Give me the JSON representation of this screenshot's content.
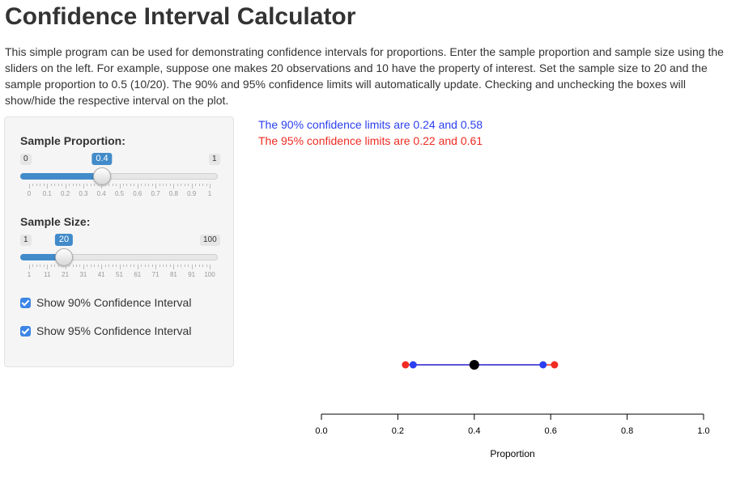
{
  "title": "Confidence Interval Calculator",
  "intro": "This simple program can be used for demonstrating confidence intervals for proportions. Enter the sample proportion and sample size using the sliders on the left. For example, suppose one makes 20 observations and 10 have the property of interest. Set the sample size to 20 and the sample proportion to 0.5 (10/20). The 90% and 95% confidence limits will automatically update. Checking and unchecking the boxes will show/hide the respective interval on the plot.",
  "prop": {
    "label": "Sample Proportion:",
    "min": "0",
    "max": "1",
    "value": "0.4",
    "ticks": [
      "0",
      "0.1",
      "0.2",
      "0.3",
      "0.4",
      "0.5",
      "0.6",
      "0.7",
      "0.8",
      "0.9",
      "1"
    ]
  },
  "size": {
    "label": "Sample Size:",
    "min": "1",
    "max": "100",
    "value": "20",
    "ticks": [
      "1",
      "11",
      "21",
      "31",
      "41",
      "51",
      "61",
      "71",
      "81",
      "91",
      "100"
    ]
  },
  "cb90": "Show 90% Confidence Interval",
  "cb95": "Show 95% Confidence Interval",
  "lim90": "The 90% confidence limits are 0.24 and 0.58",
  "lim95": "The 95% confidence limits are 0.22 and 0.61",
  "colors": {
    "ci90": "#2b3ff0",
    "ci95": "#ef2b22",
    "point": "#000000",
    "slider": "#428bca"
  },
  "chart_data": {
    "type": "scatter",
    "xlabel": "Proportion",
    "xlim": [
      0,
      1
    ],
    "xticks": [
      "0.0",
      "0.2",
      "0.4",
      "0.6",
      "0.8",
      "1.0"
    ],
    "estimate": 0.4,
    "ci90": [
      0.24,
      0.58
    ],
    "ci95": [
      0.22,
      0.61
    ]
  }
}
